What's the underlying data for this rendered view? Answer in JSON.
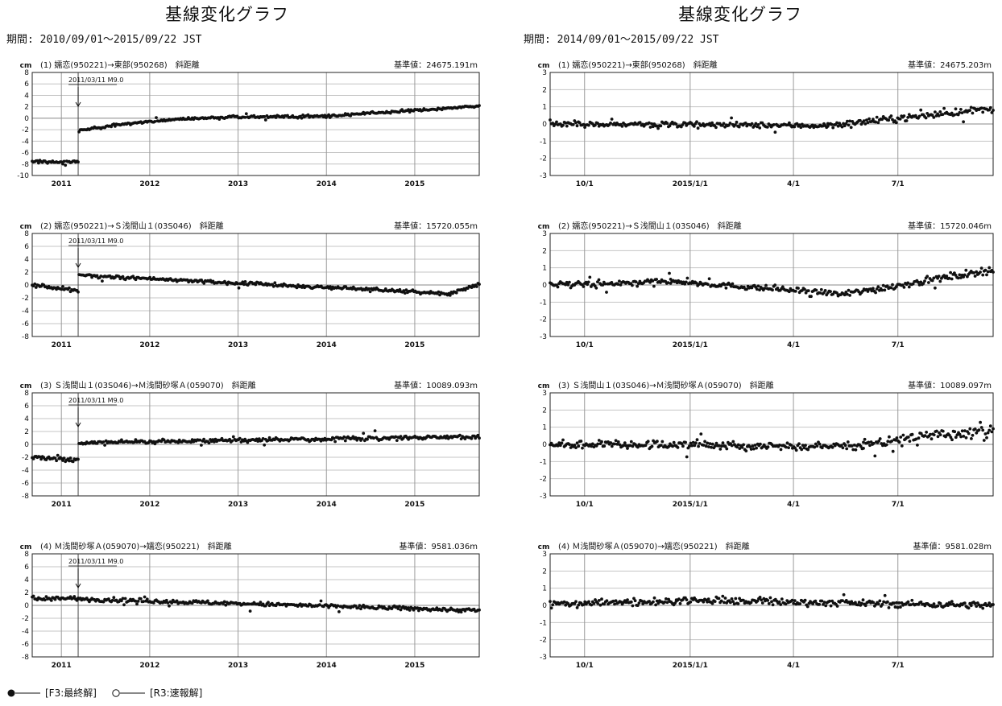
{
  "page": {
    "left_title": "基線変化グラフ",
    "left_period": "期間: 2010/09/01～2015/09/22 JST",
    "right_title": "基線変化グラフ",
    "right_period": "期間: 2014/09/01～2015/09/22 JST"
  },
  "legend": {
    "final_label": "[F3:最終解]",
    "rapid_label": "[R3:速報解]"
  },
  "chart_data": [
    {
      "type": "scatter",
      "panel": "left",
      "row": 0,
      "title": "(1) 嬬恋(950221)→東部(950268)　斜距離",
      "ref_value": "基準値：24675.191m",
      "ylabel": "cm",
      "ylim": [
        -10,
        8
      ],
      "yticks": [
        8,
        6,
        4,
        2,
        0,
        -2,
        -4,
        -6,
        -8,
        -10
      ],
      "xlim": [
        2010.67,
        2015.73
      ],
      "xticks": [
        2011.0,
        2012.0,
        2013.0,
        2014.0,
        2015.0
      ],
      "xtick_labels": [
        "2011",
        "2012",
        "2013",
        "2014",
        "2015"
      ],
      "event": {
        "x": 2011.19,
        "label": "2011/03/11 M9.0"
      },
      "segments": [
        {
          "x0": 2010.67,
          "x1": 2011.19,
          "start": -7.6,
          "end": -7.6,
          "noise": 0.25
        },
        {
          "x0": 2011.2,
          "x1": 2015.73,
          "start": -2.2,
          "end": 2.1,
          "noise": 0.22,
          "knee": [
            -2.2,
            0.3,
            0.6
          ]
        }
      ]
    },
    {
      "type": "scatter",
      "panel": "left",
      "row": 1,
      "title": "(2) 嬬恋(950221)→Ｓ浅間山１(03S046)　斜距離",
      "ref_value": "基準値：15720.055m",
      "ylabel": "cm",
      "ylim": [
        -8,
        8
      ],
      "yticks": [
        8,
        6,
        4,
        2,
        0,
        -2,
        -4,
        -6,
        -8
      ],
      "xlim": [
        2010.67,
        2015.73
      ],
      "xticks": [
        2011.0,
        2012.0,
        2013.0,
        2014.0,
        2015.0
      ],
      "xtick_labels": [
        "2011",
        "2012",
        "2013",
        "2014",
        "2015"
      ],
      "event": {
        "x": 2011.19,
        "label": "2011/03/11 M9.0"
      },
      "segments": [
        {
          "x0": 2010.67,
          "x1": 2011.19,
          "start": 0.0,
          "end": -0.9,
          "noise": 0.3
        },
        {
          "x0": 2011.2,
          "x1": 2015.4,
          "start": 1.5,
          "end": -1.3,
          "noise": 0.25
        },
        {
          "x0": 2015.4,
          "x1": 2015.73,
          "start": -1.3,
          "end": 0.1,
          "noise": 0.25
        }
      ]
    },
    {
      "type": "scatter",
      "panel": "left",
      "row": 2,
      "title": "(3) Ｓ浅間山１(03S046)→Ｍ浅間砂塚Ａ(059070)　斜距離",
      "ref_value": "基準値：10089.093m",
      "ylabel": "cm",
      "ylim": [
        -8,
        8
      ],
      "yticks": [
        8,
        6,
        4,
        2,
        0,
        -2,
        -4,
        -6,
        -8
      ],
      "xlim": [
        2010.67,
        2015.73
      ],
      "xticks": [
        2011.0,
        2012.0,
        2013.0,
        2014.0,
        2015.0
      ],
      "xtick_labels": [
        "2011",
        "2012",
        "2013",
        "2014",
        "2015"
      ],
      "event": {
        "x": 2011.19,
        "label": "2011/03/11 M9.0"
      },
      "segments": [
        {
          "x0": 2010.67,
          "x1": 2011.19,
          "start": -2.0,
          "end": -2.5,
          "noise": 0.3
        },
        {
          "x0": 2011.2,
          "x1": 2015.73,
          "start": 0.0,
          "end": 1.2,
          "noise": 0.3,
          "knee": [
            0.0,
            0.4,
            0.12
          ]
        }
      ]
    },
    {
      "type": "scatter",
      "panel": "left",
      "row": 3,
      "title": "(4) Ｍ浅間砂塚Ａ(059070)→嬬恋(950221)　斜距離",
      "ref_value": "基準値：9581.036m",
      "ylabel": "cm",
      "ylim": [
        -8,
        8
      ],
      "yticks": [
        8,
        6,
        4,
        2,
        0,
        -2,
        -4,
        -6,
        -8
      ],
      "xlim": [
        2010.67,
        2015.73
      ],
      "xticks": [
        2011.0,
        2012.0,
        2013.0,
        2014.0,
        2015.0
      ],
      "xtick_labels": [
        "2011",
        "2012",
        "2013",
        "2014",
        "2015"
      ],
      "event": {
        "x": 2011.19,
        "label": "2011/03/11 M9.0"
      },
      "segments": [
        {
          "x0": 2010.67,
          "x1": 2011.19,
          "start": 1.0,
          "end": 1.1,
          "noise": 0.3
        },
        {
          "x0": 2011.2,
          "x1": 2015.73,
          "start": 1.0,
          "end": -0.8,
          "noise": 0.3
        }
      ]
    },
    {
      "type": "scatter",
      "panel": "right",
      "row": 0,
      "title": "(1) 嬬恋(950221)→東部(950268)　斜距離",
      "ref_value": "基準値：24675.203m",
      "ylabel": "cm",
      "ylim": [
        -3,
        3
      ],
      "yticks": [
        3,
        2,
        1,
        0,
        -1,
        -2,
        -3
      ],
      "xlim": [
        "2014-09-01",
        "2015-09-22"
      ],
      "xticks": [
        "2014-10-01",
        "2015-01-01",
        "2015-04-01",
        "2015-07-01"
      ],
      "xtick_labels": [
        "10/1",
        "2015/1/1",
        "4/1",
        "7/1"
      ],
      "segments": [
        {
          "x0": "2014-09-01",
          "x1": "2015-05-01",
          "start": 0.0,
          "end": -0.1,
          "noise": 0.15
        },
        {
          "x0": "2015-05-01",
          "x1": "2015-09-22",
          "start": -0.1,
          "end": 0.9,
          "noise": 0.18
        }
      ]
    },
    {
      "type": "scatter",
      "panel": "right",
      "row": 1,
      "title": "(2) 嬬恋(950221)→Ｓ浅間山１(03S046)　斜距離",
      "ref_value": "基準値：15720.046m",
      "ylabel": "cm",
      "ylim": [
        -3,
        3
      ],
      "yticks": [
        3,
        2,
        1,
        0,
        -1,
        -2,
        -3
      ],
      "xlim": [
        "2014-09-01",
        "2015-09-22"
      ],
      "xticks": [
        "2014-10-01",
        "2015-01-01",
        "2015-04-01",
        "2015-07-01"
      ],
      "xtick_labels": [
        "10/1",
        "2015/1/1",
        "4/1",
        "7/1"
      ],
      "segments": [
        {
          "x0": "2014-09-01",
          "x1": "2014-12-15",
          "start": 0.0,
          "end": 0.2,
          "noise": 0.18
        },
        {
          "x0": "2014-12-15",
          "x1": "2015-05-10",
          "start": 0.2,
          "end": -0.5,
          "noise": 0.15
        },
        {
          "x0": "2015-05-10",
          "x1": "2015-09-22",
          "start": -0.6,
          "end": 0.9,
          "noise": 0.2
        }
      ]
    },
    {
      "type": "scatter",
      "panel": "right",
      "row": 2,
      "title": "(3) Ｓ浅間山１(03S046)→Ｍ浅間砂塚Ａ(059070)　斜距離",
      "ref_value": "基準値：10089.097m",
      "ylabel": "cm",
      "ylim": [
        -3,
        3
      ],
      "yticks": [
        3,
        2,
        1,
        0,
        -1,
        -2,
        -3
      ],
      "xlim": [
        "2014-09-01",
        "2015-09-22"
      ],
      "xticks": [
        "2014-10-01",
        "2015-01-01",
        "2015-04-01",
        "2015-07-01"
      ],
      "xtick_labels": [
        "10/1",
        "2015/1/1",
        "4/1",
        "7/1"
      ],
      "segments": [
        {
          "x0": "2014-09-01",
          "x1": "2015-06-01",
          "start": 0.0,
          "end": -0.1,
          "noise": 0.22
        },
        {
          "x0": "2015-06-01",
          "x1": "2015-09-22",
          "start": 0.1,
          "end": 0.8,
          "noise": 0.3
        }
      ]
    },
    {
      "type": "scatter",
      "panel": "right",
      "row": 3,
      "title": "(4) Ｍ浅間砂塚Ａ(059070)→嬬恋(950221)　斜距離",
      "ref_value": "基準値：9581.028m",
      "ylabel": "cm",
      "ylim": [
        -3,
        3
      ],
      "yticks": [
        3,
        2,
        1,
        0,
        -1,
        -2,
        -3
      ],
      "xlim": [
        "2014-09-01",
        "2015-09-22"
      ],
      "xticks": [
        "2014-10-01",
        "2015-01-01",
        "2015-04-01",
        "2015-07-01"
      ],
      "xtick_labels": [
        "10/1",
        "2015/1/1",
        "4/1",
        "7/1"
      ],
      "segments": [
        {
          "x0": "2014-09-01",
          "x1": "2014-12-20",
          "start": 0.1,
          "end": 0.2,
          "noise": 0.18
        },
        {
          "x0": "2014-12-20",
          "x1": "2015-09-22",
          "start": 0.3,
          "end": 0.0,
          "noise": 0.18
        }
      ]
    }
  ]
}
